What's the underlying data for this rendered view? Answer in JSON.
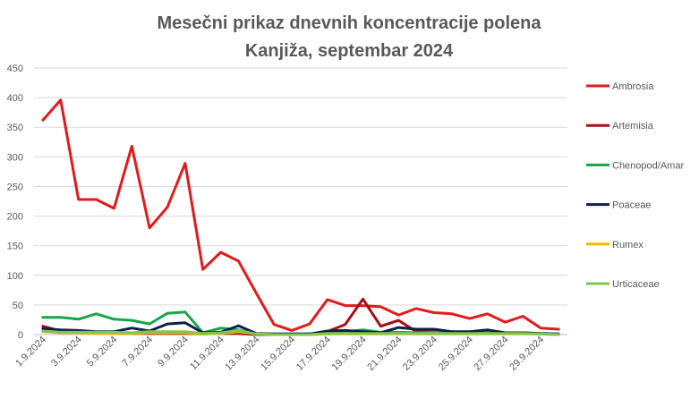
{
  "chart_data": {
    "type": "line",
    "title": "Mesečni prikaz dnevnih koncentracije polena",
    "subtitle": "Kanjiža, septembar 2024",
    "xlabel": "",
    "ylabel": "",
    "ylim": [
      0,
      450
    ],
    "yticks": [
      0,
      50,
      100,
      150,
      200,
      250,
      300,
      350,
      400,
      450
    ],
    "grid": "horizontal",
    "legend_position": "right",
    "categories": [
      "1.9.2024",
      "2.9.2024",
      "3.9.2024",
      "4.9.2024",
      "5.9.2024",
      "6.9.2024",
      "7.9.2024",
      "8.9.2024",
      "9.9.2024",
      "10.9.2024",
      "11.9.2024",
      "12.9.2024",
      "13.9.2024",
      "14.9.2024",
      "15.9.2024",
      "16.9.2024",
      "17.9.2024",
      "18.9.2024",
      "19.9.2024",
      "20.9.2024",
      "21.9.2024",
      "22.9.2024",
      "23.9.2024",
      "24.9.2024",
      "25.9.2024",
      "26.9.2024",
      "27.9.2024",
      "28.9.2024",
      "29.9.2024",
      "30.9.2024"
    ],
    "xtick_labels": [
      "1.9.2024",
      "3.9.2024",
      "5.9.2024",
      "7.9.2024",
      "9.9.2024",
      "11.9.2024",
      "13.9.2024",
      "15.9.2024",
      "17.9.2024",
      "19.9.2024",
      "21.9.2024",
      "23.9.2024",
      "25.9.2024",
      "27.9.2024",
      "29.9.2024"
    ],
    "series": [
      {
        "name": "Ambrosia",
        "color": "#e31a1c",
        "values": [
          362,
          396,
          228,
          228,
          213,
          318,
          180,
          215,
          289,
          110,
          139,
          124,
          70,
          17,
          7,
          18,
          59,
          49,
          49,
          47,
          33,
          44,
          37,
          35,
          27,
          35,
          21,
          31,
          11,
          9
        ]
      },
      {
        "name": "Artemisia",
        "color": "#a50f15",
        "values": [
          14,
          6,
          4,
          3,
          2,
          2,
          2,
          2,
          2,
          1,
          2,
          2,
          0,
          0,
          0,
          1,
          5,
          17,
          60,
          14,
          24,
          5,
          6,
          4,
          4,
          4,
          2,
          2,
          1,
          0
        ]
      },
      {
        "name": "Chenopod/Amar",
        "color": "#1aa54b",
        "values": [
          29,
          29,
          26,
          35,
          26,
          24,
          18,
          36,
          38,
          3,
          11,
          8,
          1,
          1,
          1,
          1,
          3,
          5,
          8,
          4,
          4,
          3,
          4,
          5,
          3,
          3,
          3,
          3,
          2,
          1
        ]
      },
      {
        "name": "Poaceae",
        "color": "#0b1f4d",
        "values": [
          10,
          8,
          7,
          5,
          5,
          11,
          6,
          18,
          20,
          3,
          4,
          15,
          2,
          1,
          1,
          1,
          6,
          7,
          5,
          3,
          12,
          9,
          9,
          5,
          5,
          8,
          3,
          3,
          2,
          1
        ]
      },
      {
        "name": "Rumex",
        "color": "#f5b800",
        "values": [
          5,
          3,
          3,
          2,
          2,
          2,
          3,
          3,
          3,
          1,
          2,
          5,
          1,
          0,
          0,
          0,
          1,
          1,
          1,
          1,
          1,
          1,
          1,
          1,
          1,
          1,
          1,
          1,
          1,
          0
        ]
      },
      {
        "name": "Urticaceae",
        "color": "#7ec850",
        "values": [
          6,
          4,
          4,
          4,
          4,
          3,
          5,
          5,
          5,
          2,
          3,
          7,
          1,
          0,
          0,
          0,
          2,
          2,
          2,
          2,
          2,
          2,
          2,
          2,
          2,
          2,
          2,
          2,
          1,
          0
        ]
      }
    ]
  }
}
